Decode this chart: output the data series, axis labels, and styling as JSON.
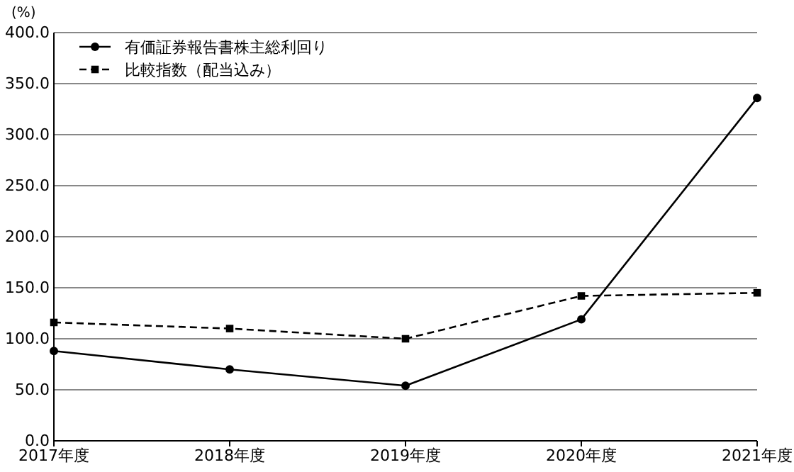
{
  "chart_data": {
    "type": "line",
    "ylabel": "(%)",
    "categories": [
      "2017年度",
      "2018年度",
      "2019年度",
      "2020年度",
      "2021年度"
    ],
    "series": [
      {
        "name": "有価証券報告書株主総利回り",
        "color": "#000000",
        "values": [
          88,
          70,
          54,
          119,
          336
        ],
        "marker": "circle",
        "line_style": "solid"
      },
      {
        "name": "比較指数（配当込み）",
        "color": "#000000",
        "values": [
          116,
          110,
          100,
          142,
          145
        ],
        "marker": "square",
        "line_style": "dashed"
      }
    ],
    "ylim": [
      0,
      400
    ],
    "yticks": [
      {
        "value": 0,
        "label": "0.0"
      },
      {
        "value": 50,
        "label": "50.0"
      },
      {
        "value": 100,
        "label": "100.0"
      },
      {
        "value": 150,
        "label": "150.0"
      },
      {
        "value": 200,
        "label": "200.0"
      },
      {
        "value": 250,
        "label": "250.0"
      },
      {
        "value": 300,
        "label": "300.0"
      },
      {
        "value": 350,
        "label": "350.0"
      },
      {
        "value": 400,
        "label": "400.0"
      }
    ],
    "grid": "y",
    "legend": "top left"
  }
}
